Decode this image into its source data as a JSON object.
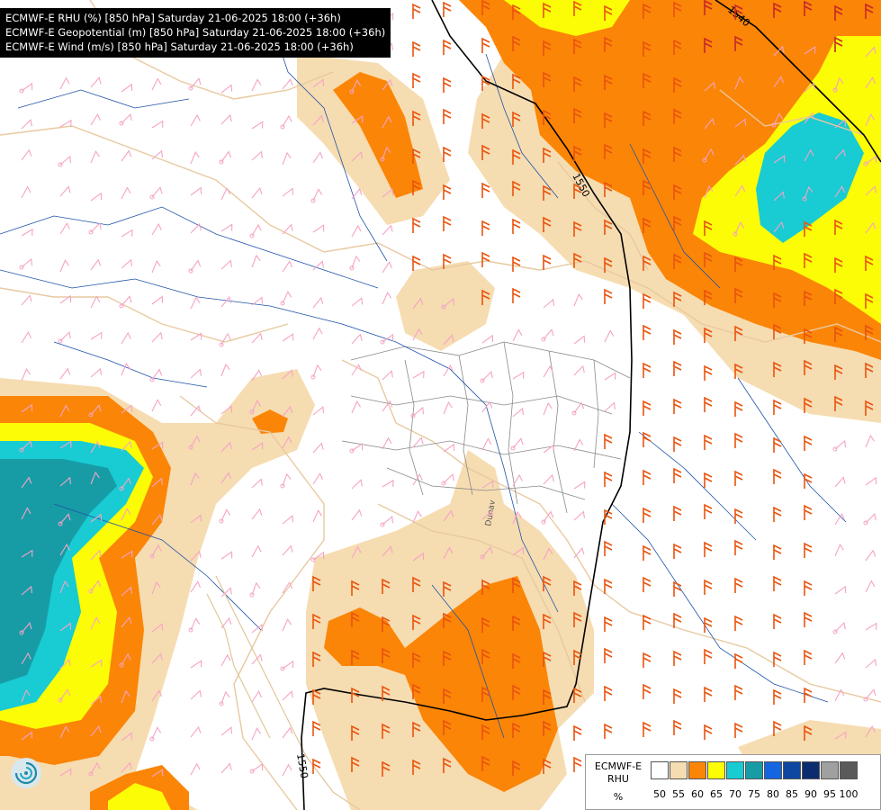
{
  "header": {
    "lines": [
      "ECMWF-E RHU (%) [850 hPa] Saturday 21-06-2025 18:00 (+36h)",
      "ECMWF-E Geopotential (m) [850 hPa] Saturday 21-06-2025 18:00 (+36h)",
      "ECMWF-E Wind (m/s) [850 hPa] Saturday 21-06-2025 18:00 (+36h)"
    ]
  },
  "map": {
    "contour_labels": [
      "1540",
      "1550",
      "1550"
    ],
    "river_label": "Dunav",
    "colors": {
      "rhu_55": "#f6dcb1",
      "rhu_60": "#fb8507",
      "rhu_65": "#fcfc06",
      "rhu_70": "#19cbd2",
      "rhu_75": "#179ca6",
      "wind_barb_light": "#f5a3c6",
      "wind_barb_strong": "#e9530e",
      "wind_barb_darkred": "#c62828",
      "contour": "#000000",
      "rivers": "#1f52a8",
      "borders": "#e8c9a0"
    }
  },
  "legend": {
    "title_line1": "ECMWF-E",
    "title_line2": "RHU",
    "unit": "%",
    "ticks": [
      "50",
      "55",
      "60",
      "65",
      "70",
      "75",
      "80",
      "85",
      "90",
      "95",
      "100"
    ],
    "colors": [
      "#ffffff",
      "#f6dcb1",
      "#fb8507",
      "#fcfc06",
      "#19cbd2",
      "#179ca6",
      "#1565e0",
      "#0d47a1",
      "#0b2c6e",
      "#a0a0a0",
      "#5a5a5a"
    ]
  },
  "logo": {
    "icon": "swirl-logo-icon"
  }
}
